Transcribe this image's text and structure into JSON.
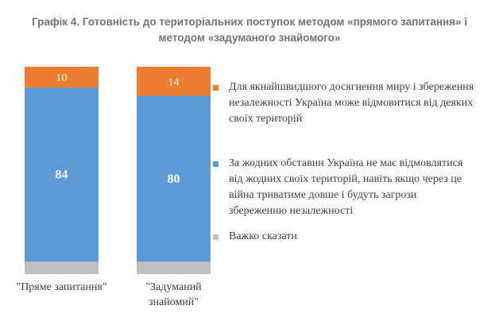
{
  "chart_data": {
    "type": "bar",
    "stacked": true,
    "title": "Графік 4. Готовність до територіальних поступок методом «прямого запитання» і методом «задуманого знайомого»",
    "categories": [
      "\"Пряме запитання\"",
      "\"Задуманий знайомий\""
    ],
    "series": [
      {
        "name": "Важко сказати",
        "values": [
          6,
          6
        ],
        "color": "#c0c0c0"
      },
      {
        "name": "За жодних обставин Україна не має відмовлятися від жодних своїх територій, навіть якщо через це війна триватиме довше і будуть загрози збереженню незалежності",
        "values": [
          84,
          80
        ],
        "color": "#5b9bd5",
        "label_color": "#ffffff",
        "show_labels": true
      },
      {
        "name": "Для якнайшвидшого досягнення миру і збереження незалежності Україна може відмовитися від деяких своїх територій",
        "values": [
          10,
          14
        ],
        "color": "#ed7d31",
        "label_color": "#ffffff",
        "show_labels": true
      }
    ],
    "ylim": [
      0,
      100
    ],
    "legend_order": [
      2,
      1,
      0
    ],
    "legend_position": "right"
  }
}
